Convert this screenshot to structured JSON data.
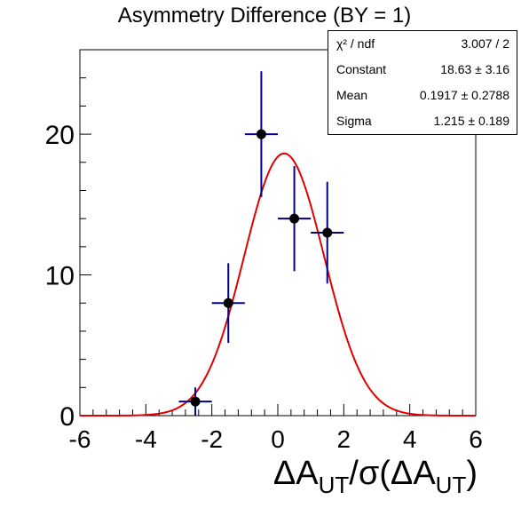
{
  "chart_data": {
    "type": "scatter",
    "title": "Asymmetry Difference (BY = 1)",
    "xlabel_parts": [
      "ΔA",
      "UT",
      "/σ(ΔA",
      "UT",
      ")"
    ],
    "xlim": [
      -6,
      6
    ],
    "ylim": [
      0,
      26
    ],
    "xticks": [
      "-6",
      "-4",
      "-2",
      "0",
      "2",
      "4",
      "6"
    ],
    "xtick_values": [
      -6,
      -4,
      -2,
      0,
      2,
      4,
      6
    ],
    "yticks": [
      "0",
      "10",
      "20"
    ],
    "ytick_values": [
      0,
      10,
      20
    ],
    "grid": false,
    "points": [
      {
        "x": -2.5,
        "y": 1,
        "xerr": 0.5,
        "yerr": 1.0
      },
      {
        "x": -1.5,
        "y": 8,
        "xerr": 0.5,
        "yerr": 2.83
      },
      {
        "x": -0.5,
        "y": 20,
        "xerr": 0.5,
        "yerr": 4.47
      },
      {
        "x": 0.5,
        "y": 14,
        "xerr": 0.5,
        "yerr": 3.74
      },
      {
        "x": 1.5,
        "y": 13,
        "xerr": 0.5,
        "yerr": 3.61
      }
    ],
    "fit": {
      "function": "gaus",
      "constant": 18.63,
      "mean": 0.1917,
      "sigma": 1.215,
      "color": "#e00000"
    },
    "marker_color": "#000000",
    "errorbar_color": "#00008b",
    "stats_box": [
      {
        "label": "χ² / ndf",
        "value": "3.007 / 2"
      },
      {
        "label": "Constant",
        "value": "18.63 ± 3.16"
      },
      {
        "label": "Mean",
        "value": "0.1917 ± 0.2788"
      },
      {
        "label": "Sigma",
        "value": "1.215 ± 0.189"
      }
    ]
  }
}
